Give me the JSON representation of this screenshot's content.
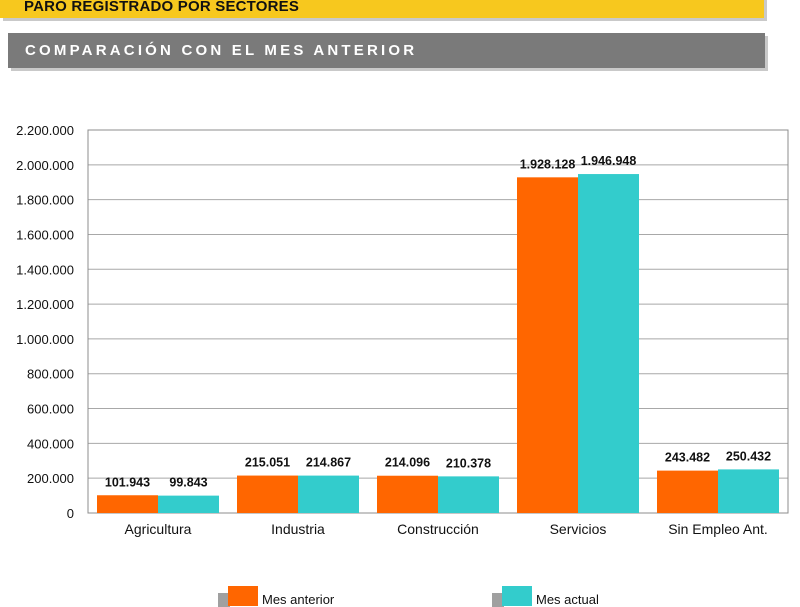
{
  "header": {
    "title": "PARO REGISTRADO POR SECTORES",
    "subtitle": "COMPARACIÓN CON EL MES ANTERIOR"
  },
  "colors": {
    "header_bar": "#f7c81e",
    "subtitle_bar": "#7a7a7a",
    "series_1": "#ff6600",
    "series_2": "#33cccc"
  },
  "chart_data": {
    "type": "bar",
    "categories": [
      "Agricultura",
      "Industria",
      "Construcción",
      "Servicios",
      "Sin Empleo Ant."
    ],
    "series": [
      {
        "name": "Mes anterior",
        "values": [
          101943,
          215051,
          214096,
          1928128,
          243482
        ],
        "labels": [
          "101.943",
          "215.051",
          "214.096",
          "1.928.128",
          "243.482"
        ]
      },
      {
        "name": "Mes actual",
        "values": [
          99843,
          214867,
          210378,
          1946948,
          250432
        ],
        "labels": [
          "99.843",
          "214.867",
          "210.378",
          "1.946.948",
          "250.432"
        ]
      }
    ],
    "ylim": [
      0,
      2200000
    ],
    "yticks": [
      0,
      200000,
      400000,
      600000,
      800000,
      1000000,
      1200000,
      1400000,
      1600000,
      1800000,
      2000000,
      2200000
    ],
    "ytick_labels": [
      "0",
      "200.000",
      "400.000",
      "600.000",
      "800.000",
      "1.000.000",
      "1.200.000",
      "1.400.000",
      "1.600.000",
      "1.800.000",
      "2.000.000",
      "2.200.000"
    ],
    "grid": true,
    "legend_position": "bottom",
    "xlabel": "",
    "ylabel": ""
  }
}
